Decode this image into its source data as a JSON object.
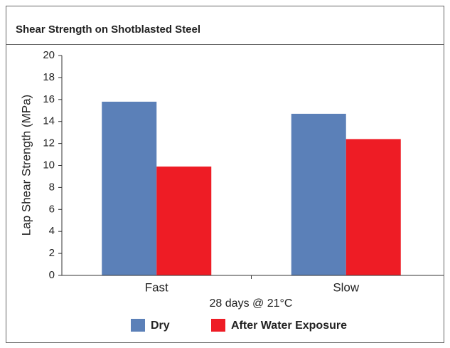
{
  "chart_data": {
    "type": "bar",
    "title": "Shear Strength on Shotblasted Steel",
    "y_label": "Lap Shear Strength (MPa)",
    "x_label": "28 days @ 21°C",
    "categories": [
      "Fast",
      "Slow"
    ],
    "series": [
      {
        "name": "Dry",
        "color": "#5b80b8",
        "values": [
          15.8,
          14.7
        ]
      },
      {
        "name": "After Water Exposure",
        "color": "#ee1c25",
        "values": [
          9.9,
          12.4
        ]
      }
    ],
    "ylim": [
      0,
      20
    ],
    "yticks": [
      0,
      2,
      4,
      6,
      8,
      10,
      12,
      14,
      16,
      18,
      20
    ],
    "grid": false,
    "legend": "bottom"
  }
}
